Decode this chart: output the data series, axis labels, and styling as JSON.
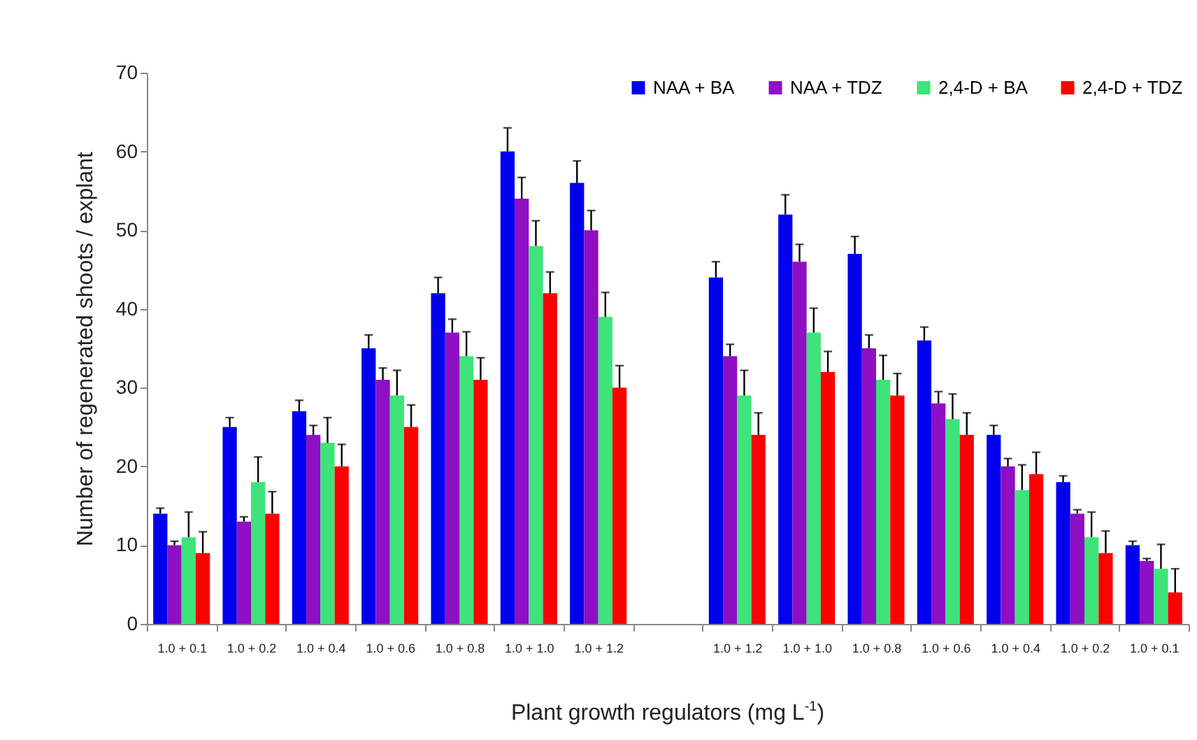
{
  "chart_data": {
    "type": "bar",
    "xlabel": "Plant growth regulators (mg L$^{-1}$)",
    "ylabel": "Number of regenerated shoots / explant",
    "categories": [
      "1.0 + 0.1",
      "1.0 + 0.2",
      "1.0 + 0.4",
      "1.0 + 0.6",
      "1.0 + 0.8",
      "1.0 + 1.0",
      "1.0 + 1.2",
      null,
      "1.0 + 1.2",
      "1.0 + 1.0",
      "1.0 + 0.8",
      "1.0 + 0.6",
      "1.0 + 0.4",
      "1.0 + 0.2",
      "1.0 + 0.1"
    ],
    "series": [
      {
        "name": "NAA + BA",
        "color": "#0000ee",
        "values": [
          14,
          25,
          27,
          35,
          42,
          60,
          56,
          null,
          44,
          52,
          47,
          36,
          24,
          18,
          10
        ],
        "errors": [
          [
            14,
            14.7
          ],
          [
            25,
            26.2
          ],
          [
            27,
            28.4
          ],
          [
            35,
            36.7
          ],
          [
            42,
            44
          ],
          [
            60,
            63
          ],
          [
            56,
            58.8
          ],
          null,
          [
            44,
            46
          ],
          [
            52,
            54.5
          ],
          [
            47,
            49.2
          ],
          [
            36,
            37.7
          ],
          [
            24,
            25.2
          ],
          [
            18,
            18.8
          ],
          [
            10,
            10.5
          ]
        ]
      },
      {
        "name": "NAA + TDZ",
        "color": "#8e0fc4",
        "values": [
          10,
          13,
          24,
          31,
          37,
          54,
          50,
          null,
          34,
          46,
          35,
          28,
          20,
          14,
          8
        ],
        "errors": [
          [
            10,
            10.5
          ],
          [
            13,
            13.6
          ],
          [
            24,
            25.2
          ],
          [
            31,
            32.5
          ],
          [
            37,
            38.7
          ],
          [
            54,
            56.7
          ],
          [
            50,
            52.5
          ],
          null,
          [
            34,
            35.5
          ],
          [
            46,
            48.2
          ],
          [
            35,
            36.7
          ],
          [
            28,
            29.5
          ],
          [
            20,
            21
          ],
          [
            14,
            14.5
          ],
          [
            8,
            8.3
          ]
        ]
      },
      {
        "name": "2,4-D + BA",
        "color": "#3ee37a",
        "values": [
          11,
          18,
          23,
          29,
          34,
          48,
          39,
          null,
          29,
          37,
          31,
          26,
          17,
          11,
          7
        ],
        "errors": [
          [
            11,
            14.2
          ],
          [
            18,
            21.2
          ],
          [
            23,
            26.2
          ],
          [
            29,
            32.2
          ],
          [
            34,
            37.1
          ],
          [
            48,
            51.2
          ],
          [
            39,
            42.1
          ],
          null,
          [
            29,
            32.2
          ],
          [
            37,
            40.1
          ],
          [
            31,
            34.1
          ],
          [
            26,
            29.2
          ],
          [
            17,
            20.2
          ],
          [
            11,
            14.2
          ],
          [
            7,
            10.1
          ]
        ]
      },
      {
        "name": "2,4-D + TDZ",
        "color": "#ff0000",
        "values": [
          9,
          14,
          20,
          25,
          31,
          42,
          30,
          null,
          24,
          32,
          29,
          24,
          19,
          9,
          4
        ],
        "errors": [
          [
            9,
            11.7
          ],
          [
            14,
            16.8
          ],
          [
            20,
            22.8
          ],
          [
            25,
            27.8
          ],
          [
            31,
            33.8
          ],
          [
            42,
            44.7
          ],
          [
            30,
            32.8
          ],
          null,
          [
            24,
            26.8
          ],
          [
            32,
            34.6
          ],
          [
            29,
            31.8
          ],
          [
            24,
            26.8
          ],
          [
            19,
            21.8
          ],
          [
            9,
            11.8
          ],
          [
            4,
            7
          ]
        ]
      }
    ],
    "ylim": [
      0,
      70
    ],
    "yticks": [
      0,
      10,
      20,
      30,
      40,
      50,
      60,
      70
    ],
    "grid": false,
    "legend": "top right"
  }
}
